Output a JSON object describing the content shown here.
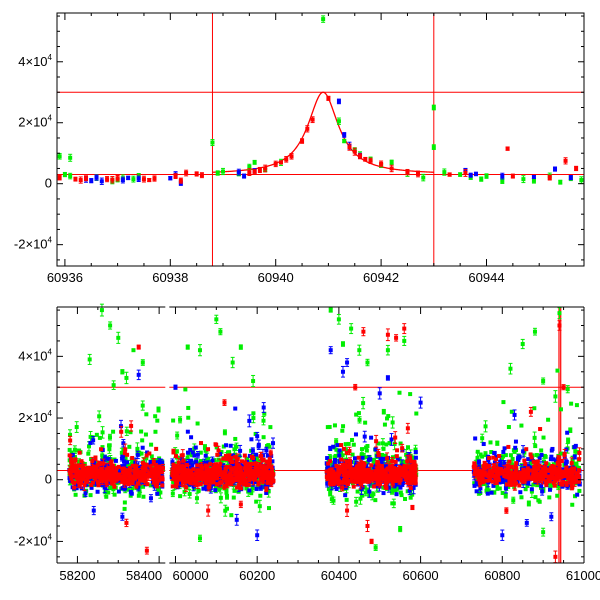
{
  "chart_data": [
    {
      "type": "scatter",
      "title": "",
      "xlabel": "",
      "ylabel": "",
      "xlim": [
        60935.85,
        60945.85
      ],
      "ylim": [
        -27000,
        56000
      ],
      "x_ticks": [
        {
          "value": 60936,
          "label": "60936"
        },
        {
          "value": 60938,
          "label": "60938"
        },
        {
          "value": 60940,
          "label": "60940"
        },
        {
          "value": 60942,
          "label": "60942"
        },
        {
          "value": 60944,
          "label": "60944"
        }
      ],
      "y_ticks": [
        {
          "value": -20000,
          "mant": "-2",
          "exp": "4"
        },
        {
          "value": 0,
          "mant": "0",
          "exp": ""
        },
        {
          "value": 20000,
          "mant": "2",
          "exp": "4"
        },
        {
          "value": 40000,
          "mant": "4",
          "exp": "4"
        }
      ],
      "reference_lines": {
        "horizontal": [
          3000,
          30000
        ],
        "vertical": [
          60938.8,
          60943.0
        ]
      },
      "model_curve": {
        "name": "fit",
        "color": "#ff0000",
        "baseline": 3000,
        "peak": 30000,
        "t0": 60940.9,
        "width": 0.45
      },
      "series": [
        {
          "name": "green",
          "color": "#00ee00",
          "points": [
            [
              60935.9,
              9000
            ],
            [
              60936.0,
              3000
            ],
            [
              60936.1,
              2500
            ],
            [
              60936.1,
              8500
            ],
            [
              60936.6,
              2000
            ],
            [
              60936.9,
              900
            ],
            [
              60937.0,
              1200
            ],
            [
              60937.1,
              1800
            ],
            [
              60937.3,
              1500
            ],
            [
              60937.4,
              2300
            ],
            [
              60938.8,
              13500
            ],
            [
              60938.9,
              3500
            ],
            [
              60939.0,
              4000
            ],
            [
              60939.3,
              3200
            ],
            [
              60939.5,
              5500
            ],
            [
              60939.6,
              7000
            ],
            [
              60939.8,
              4500
            ],
            [
              60940.1,
              7000
            ],
            [
              60940.9,
              54000
            ],
            [
              60941.2,
              20500
            ],
            [
              60941.3,
              14000
            ],
            [
              60941.5,
              11000
            ],
            [
              60941.6,
              9500
            ],
            [
              60941.8,
              8000
            ],
            [
              60942.0,
              6000
            ],
            [
              60942.2,
              7000
            ],
            [
              60942.5,
              3500
            ],
            [
              60942.8,
              2000
            ],
            [
              60943.0,
              12000
            ],
            [
              60943.0,
              25000
            ],
            [
              60943.2,
              3800
            ],
            [
              60943.5,
              3000
            ],
            [
              60943.7,
              2000
            ],
            [
              60943.9,
              1500
            ],
            [
              60944.0,
              2500
            ],
            [
              60944.3,
              900
            ],
            [
              60944.7,
              1500
            ],
            [
              60944.9,
              1000
            ],
            [
              60945.2,
              2500
            ],
            [
              60945.4,
              500
            ],
            [
              60945.6,
              1800
            ],
            [
              60945.8,
              1200
            ]
          ]
        },
        {
          "name": "blue",
          "color": "#0000ff",
          "points": [
            [
              60936.4,
              1500
            ],
            [
              60936.5,
              1000
            ],
            [
              60936.6,
              2000
            ],
            [
              60936.7,
              800
            ],
            [
              60937.1,
              1200
            ],
            [
              60937.2,
              1900
            ],
            [
              60937.4,
              1600
            ],
            [
              60938.0,
              1800
            ],
            [
              60938.1,
              3000
            ],
            [
              60938.2,
              200
            ],
            [
              60939.3,
              3800
            ],
            [
              60939.4,
              2500
            ],
            [
              60939.6,
              4200
            ],
            [
              60941.2,
              27000
            ],
            [
              60941.3,
              16000
            ],
            [
              60941.4,
              12500
            ],
            [
              60941.6,
              9200
            ],
            [
              60943.6,
              4500
            ],
            [
              60943.7,
              2800
            ],
            [
              60943.8,
              3200
            ],
            [
              60944.3,
              2500
            ],
            [
              60944.9,
              2200
            ],
            [
              60945.3,
              4800
            ],
            [
              60945.6,
              2000
            ]
          ]
        },
        {
          "name": "red",
          "color": "#ff0000",
          "points": [
            [
              60935.9,
              2000
            ],
            [
              60936.2,
              1500
            ],
            [
              60936.3,
              1200
            ],
            [
              60936.4,
              1800
            ],
            [
              60936.8,
              1500
            ],
            [
              60936.9,
              1300
            ],
            [
              60937.0,
              1800
            ],
            [
              60937.5,
              1500
            ],
            [
              60937.6,
              1200
            ],
            [
              60937.7,
              1700
            ],
            [
              60938.1,
              2500
            ],
            [
              60938.2,
              1000
            ],
            [
              60938.3,
              3500
            ],
            [
              60938.5,
              3200
            ],
            [
              60938.6,
              2800
            ],
            [
              60939.5,
              3800
            ],
            [
              60939.6,
              4000
            ],
            [
              60939.7,
              4500
            ],
            [
              60939.8,
              5000
            ],
            [
              60940.0,
              6500
            ],
            [
              60940.1,
              7000
            ],
            [
              60940.2,
              8000
            ],
            [
              60940.3,
              9000
            ],
            [
              60940.5,
              14000
            ],
            [
              60940.6,
              18000
            ],
            [
              60940.7,
              21000
            ],
            [
              60941.0,
              28000
            ],
            [
              60941.4,
              12000
            ],
            [
              60941.5,
              10500
            ],
            [
              60941.6,
              9000
            ],
            [
              60941.7,
              8000
            ],
            [
              60941.8,
              7500
            ],
            [
              60942.0,
              6500
            ],
            [
              60942.2,
              5000
            ],
            [
              60942.5,
              3800
            ],
            [
              60942.7,
              3200
            ],
            [
              60943.3,
              3000
            ],
            [
              60943.6,
              3500
            ],
            [
              60944.4,
              11500
            ],
            [
              60944.5,
              2500
            ],
            [
              60945.2,
              2000
            ],
            [
              60945.5,
              7500
            ],
            [
              60945.7,
              5000
            ]
          ]
        }
      ]
    },
    {
      "type": "scatter",
      "title": "",
      "xlabel": "",
      "ylabel": "",
      "xlim": [
        58150,
        61000
      ],
      "ylim": [
        -27000,
        56000
      ],
      "x_ticks": [
        {
          "value": 58200,
          "label": "58200"
        },
        {
          "value": 58400,
          "label": "58400"
        },
        {
          "value": 60000,
          "label": "60000"
        },
        {
          "value": 60200,
          "label": "60200"
        },
        {
          "value": 60400,
          "label": "60400"
        },
        {
          "value": 60600,
          "label": "60600"
        },
        {
          "value": 60800,
          "label": "60800"
        },
        {
          "value": 61000,
          "label": "61000"
        }
      ],
      "axis_break": {
        "from": 58420,
        "to": 59980
      },
      "y_ticks": [
        {
          "value": -20000,
          "mant": "-2",
          "exp": "4"
        },
        {
          "value": 0,
          "mant": "0",
          "exp": ""
        },
        {
          "value": 20000,
          "mant": "2",
          "exp": "4"
        },
        {
          "value": 40000,
          "mant": "4",
          "exp": "4"
        }
      ],
      "reference_lines": {
        "horizontal": [
          3000,
          30000
        ],
        "vertical": [
          60938.8,
          60943.0
        ]
      },
      "seasons": [
        {
          "range": [
            58180,
            58410
          ],
          "n": 260
        },
        {
          "range": [
            59990,
            60240
          ],
          "n": 300
        },
        {
          "range": [
            60370,
            60590
          ],
          "n": 300
        },
        {
          "range": [
            60730,
            60990
          ],
          "n": 240
        }
      ],
      "series": [
        {
          "name": "green",
          "color": "#00ee00",
          "spread": 11000,
          "outliers": [
            [
              58230,
              39000
            ],
            [
              58260,
              55000
            ],
            [
              58280,
              50000
            ],
            [
              58300,
              46000
            ],
            [
              58310,
              35000
            ],
            [
              58320,
              33000
            ],
            [
              58360,
              38000
            ],
            [
              60030,
              43000
            ],
            [
              60060,
              42000
            ],
            [
              60100,
              52000
            ],
            [
              60110,
              48000
            ],
            [
              60140,
              38000
            ],
            [
              60160,
              43000
            ],
            [
              60190,
              32000
            ],
            [
              60380,
              55000
            ],
            [
              60400,
              52000
            ],
            [
              60410,
              44000
            ],
            [
              60430,
              49000
            ],
            [
              60450,
              42000
            ],
            [
              60470,
              38000
            ],
            [
              60520,
              42000
            ],
            [
              60560,
              45000
            ],
            [
              60820,
              36000
            ],
            [
              60850,
              44000
            ],
            [
              60880,
              48000
            ],
            [
              60900,
              32000
            ],
            [
              60930,
              27000
            ],
            [
              60940,
              54000
            ],
            [
              60060,
              -19000
            ],
            [
              60490,
              -22000
            ],
            [
              60550,
              -16000
            ],
            [
              60900,
              -17000
            ]
          ]
        },
        {
          "name": "blue",
          "color": "#0000ff",
          "spread": 6500,
          "outliers": [
            [
              58240,
              -10000
            ],
            [
              58310,
              -12000
            ],
            [
              58380,
              -6000
            ],
            [
              58350,
              34000
            ],
            [
              60000,
              30000
            ],
            [
              60150,
              -13000
            ],
            [
              60200,
              -18000
            ],
            [
              60380,
              42000
            ],
            [
              60410,
              35000
            ],
            [
              60420,
              38000
            ],
            [
              60500,
              28000
            ],
            [
              60520,
              33000
            ],
            [
              60600,
              25000
            ],
            [
              60800,
              -18000
            ],
            [
              60830,
              21000
            ],
            [
              60860,
              -14000
            ],
            [
              60920,
              -12000
            ]
          ]
        },
        {
          "name": "red",
          "color": "#ff0000",
          "spread": 4500,
          "outliers": [
            [
              58350,
              43000
            ],
            [
              58370,
              -23000
            ],
            [
              58320,
              -14000
            ],
            [
              60080,
              -10000
            ],
            [
              60120,
              25000
            ],
            [
              60160,
              -8000
            ],
            [
              60420,
              -10000
            ],
            [
              60440,
              30000
            ],
            [
              60460,
              48000
            ],
            [
              60470,
              -15000
            ],
            [
              60480,
              -20000
            ],
            [
              60520,
              47000
            ],
            [
              60540,
              46000
            ],
            [
              60560,
              49000
            ],
            [
              60580,
              -9000
            ],
            [
              60810,
              -10000
            ],
            [
              60870,
              22000
            ],
            [
              60930,
              -25000
            ],
            [
              60940,
              50000
            ],
            [
              60950,
              30000
            ]
          ]
        }
      ]
    }
  ]
}
